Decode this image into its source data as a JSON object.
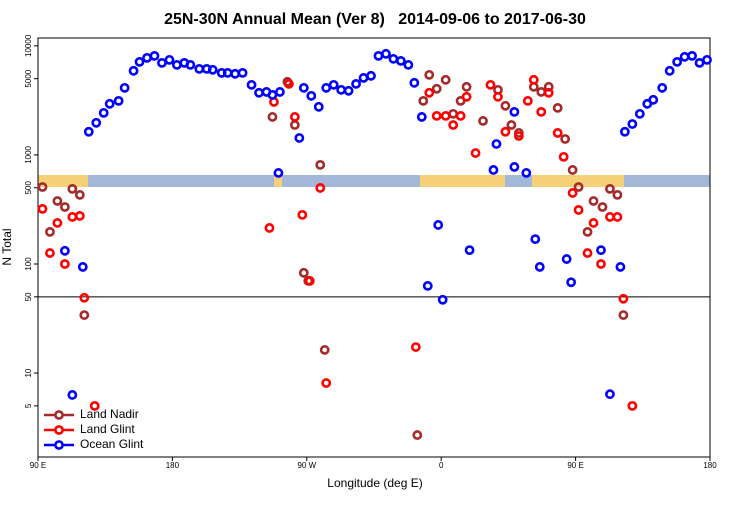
{
  "chart_data": {
    "type": "scatter",
    "title": "25N-30N Annual Mean (Ver 8)   2014-09-06 to 2017-06-30",
    "xlabel": "Longitude (deg E)",
    "ylabel": "N Total",
    "xlim": [
      90,
      540
    ],
    "xticks": [
      {
        "value": 90,
        "label": "90 E"
      },
      {
        "value": 180,
        "label": "180"
      },
      {
        "value": 270,
        "label": "90 W"
      },
      {
        "value": 360,
        "label": "0"
      },
      {
        "value": 450,
        "label": "90 E"
      },
      {
        "value": 540,
        "label": "180"
      }
    ],
    "ylim": [
      1.7,
      11800
    ],
    "yscale": "log",
    "yticks": [
      5,
      10,
      50,
      100,
      500,
      1000,
      5000,
      10000
    ],
    "reference_line": 50,
    "legend": "bottom-left",
    "series": [
      {
        "name": "Land Nadir",
        "color": "#a52a2a",
        "x": [
          93,
          98,
          103,
          108,
          113,
          118,
          121,
          247,
          257,
          262,
          268,
          271,
          279,
          282,
          344,
          348,
          352,
          357,
          363,
          368,
          373,
          377,
          388,
          398,
          403,
          407,
          412,
          422,
          427,
          432,
          438,
          443,
          448,
          452,
          458,
          462,
          468,
          473,
          478,
          482
        ],
        "values": [
          508,
          197,
          378,
          333,
          488,
          430,
          34,
          2230,
          4680,
          1880,
          83,
          70,
          810,
          16.3,
          2.7,
          3130,
          5420,
          4040,
          4880,
          2380,
          3130,
          4210,
          2050,
          3950,
          2820,
          1880,
          1590,
          4210,
          3780,
          4210,
          2700,
          1400,
          728,
          508,
          197,
          378,
          333,
          488,
          430,
          34
        ]
      },
      {
        "name": "Land Glint",
        "color": "#ff0000",
        "x": [
          93,
          98,
          103,
          108,
          113,
          118,
          121,
          128,
          245,
          248,
          258,
          262,
          267,
          272,
          279,
          283,
          343,
          352,
          357,
          363,
          368,
          373,
          377,
          383,
          393,
          398,
          403,
          412,
          418,
          422,
          427,
          432,
          438,
          442,
          448,
          452,
          458,
          462,
          467,
          473,
          478,
          482,
          488
        ],
        "values": [
          320,
          126,
          238,
          100,
          270,
          276,
          49,
          5.0,
          214,
          3060,
          4480,
          2230,
          282,
          70,
          498,
          8.1,
          17.3,
          3710,
          2280,
          2280,
          1880,
          2280,
          3410,
          1040,
          4390,
          3410,
          1630,
          1490,
          3130,
          4880,
          2480,
          3710,
          1590,
          960,
          448,
          313,
          126,
          238,
          100,
          270,
          270,
          48,
          5.0
        ]
      },
      {
        "name": "Ocean Glint",
        "color": "#0000ff",
        "x": [
          108,
          113,
          120,
          124,
          129,
          134,
          138,
          144,
          148,
          154,
          158,
          163,
          168,
          173,
          178,
          183,
          188,
          192,
          198,
          203,
          207,
          213,
          217,
          222,
          227,
          233,
          238,
          243,
          247,
          251,
          252,
          265,
          268,
          273,
          278,
          283,
          288,
          293,
          298,
          303,
          308,
          313,
          318,
          323,
          328,
          333,
          338,
          342,
          347,
          351,
          358,
          361,
          379,
          395,
          397,
          409,
          409,
          417,
          423,
          426,
          444,
          447,
          467,
          473,
          480,
          483,
          488,
          493,
          498,
          502,
          508,
          513,
          518,
          523,
          528,
          533,
          538
        ],
        "values": [
          132,
          6.3,
          94,
          1630,
          1970,
          2430,
          2940,
          3130,
          4120,
          5900,
          7130,
          7760,
          8090,
          6980,
          7440,
          6690,
          6980,
          6690,
          6150,
          6150,
          6030,
          5650,
          5650,
          5540,
          5650,
          4390,
          3710,
          3780,
          3550,
          684,
          3780,
          1430,
          4120,
          3480,
          2760,
          4120,
          4390,
          3950,
          3870,
          4480,
          5080,
          5310,
          8090,
          8450,
          7600,
          7280,
          6690,
          4580,
          2230,
          63,
          228,
          47,
          134,
          728,
          1260,
          776,
          2480,
          684,
          169,
          94,
          111,
          68,
          134,
          6.4,
          94,
          1630,
          1920,
          2380,
          2940,
          3200,
          4120,
          5900,
          7130,
          7930,
          8090,
          6980,
          7440
        ]
      }
    ]
  }
}
